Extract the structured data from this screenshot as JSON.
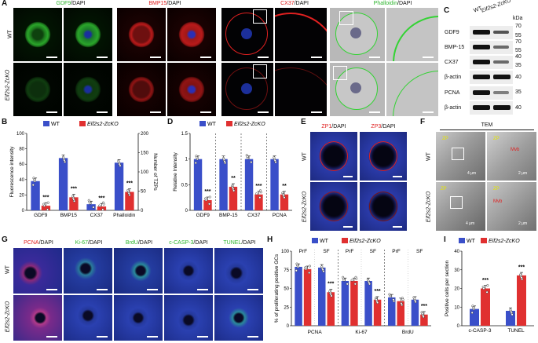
{
  "panel_letters": {
    "a": "A",
    "b": "B",
    "c": "C",
    "d": "D",
    "e": "E",
    "f": "F",
    "g": "G",
    "h": "H",
    "i": "I"
  },
  "genotypes": {
    "wt": "WT",
    "ko": "Eif2s2-ZcKO"
  },
  "panel_a": {
    "titles": {
      "gdf9": "GDF9",
      "bmp15": "BMP15",
      "cx37": "CX37",
      "phalloidin": "Phalloidin",
      "dapi": "/DAPI"
    },
    "colors": {
      "gdf9": "#2db52d",
      "bmp15": "#e02020",
      "cx37": "#e02020",
      "phalloidin": "#33d333"
    }
  },
  "panel_c": {
    "unit": "kDa",
    "lanes": [
      "WT",
      "Eif2s2-ZcKO"
    ],
    "rows": [
      {
        "label": "GDF9",
        "markers": [
          "70",
          "55"
        ]
      },
      {
        "label": "BMP-15",
        "markers": [
          "70",
          "55"
        ]
      },
      {
        "label": "CX37",
        "markers": [
          "40",
          "35"
        ]
      },
      {
        "label": "β-actin",
        "markers": [
          "40"
        ]
      },
      {
        "label": "PCNA",
        "markers": [
          "35"
        ]
      },
      {
        "label": "β-actin",
        "markers": [
          "40"
        ]
      }
    ]
  },
  "panel_e": {
    "zp1": "ZP1",
    "zp3": "ZP3",
    "dapi": "/DAPI"
  },
  "panel_f": {
    "title": "TEM",
    "scale_bars": [
      "4 μm",
      "2 μm",
      "4 μm",
      "2 μm"
    ],
    "labels": [
      "ZP",
      "Mvb",
      "ZP",
      "Mvb"
    ]
  },
  "panel_g": {
    "titles": [
      "PCNA",
      "Ki-67",
      "BrdU",
      "c-CASP-3",
      "TUNEL"
    ],
    "dapi": "/DAPI"
  },
  "chart_data": [
    {
      "type": "bar",
      "title": "B",
      "categories": [
        "GDF9",
        "BMP15",
        "CX37",
        "Phalloidin"
      ],
      "ylabel": "Fluorescence intensity",
      "ylim": [
        0,
        100
      ],
      "y2label": "Number of TZPs",
      "y2lim": [
        0,
        200
      ],
      "series": [
        {
          "name": "WT",
          "color": "#3a4fc9",
          "values": [
            38,
            68,
            8,
            62
          ]
        },
        {
          "name": "Eif2s2-ZcKO",
          "color": "#e03030",
          "values": [
            6,
            17,
            5,
            24
          ]
        }
      ],
      "significance": [
        "***",
        "***",
        "***",
        "***"
      ],
      "legend": "top"
    },
    {
      "type": "bar",
      "title": "D",
      "categories": [
        "GDF9",
        "BMP-15",
        "CX37",
        "PCNA"
      ],
      "ylabel": "Relative Intensity",
      "ylim": [
        0,
        1.5
      ],
      "series": [
        {
          "name": "WT",
          "color": "#3a4fc9",
          "values": [
            1.0,
            1.0,
            1.0,
            1.0
          ]
        },
        {
          "name": "Eif2s2-ZcKO",
          "color": "#e03030",
          "values": [
            0.2,
            0.46,
            0.31,
            0.31
          ]
        }
      ],
      "significance": [
        "***",
        "**",
        "***",
        "**"
      ],
      "legend": "top"
    },
    {
      "type": "bar",
      "title": "H",
      "categories": [
        "PCNA PrF",
        "PCNA SF",
        "Ki-67 PrF",
        "Ki-67 SF",
        "BrdU PrF",
        "BrdU SF"
      ],
      "group_labels": [
        "PCNA",
        "Ki-67",
        "BrdU"
      ],
      "sub_labels": [
        "PrF",
        "SF",
        "PrF",
        "SF",
        "PrF",
        "SF"
      ],
      "ylabel": "% of proliferating positive GCs",
      "ylim": [
        0,
        100
      ],
      "series": [
        {
          "name": "WT",
          "color": "#3a4fc9",
          "values": [
            79,
            78,
            60,
            60,
            38,
            35
          ]
        },
        {
          "name": "Eif2s2-ZcKO",
          "color": "#e03030",
          "values": [
            76,
            45,
            60,
            35,
            33,
            15
          ]
        }
      ],
      "significance": [
        "",
        "***",
        "",
        "***",
        "",
        "***"
      ],
      "legend": "top"
    },
    {
      "type": "bar",
      "title": "I",
      "categories": [
        "c-CASP-3",
        "TUNEL"
      ],
      "ylabel": "Positive cells per section",
      "ylim": [
        0,
        40
      ],
      "series": [
        {
          "name": "WT",
          "color": "#3a4fc9",
          "values": [
            9,
            8
          ]
        },
        {
          "name": "Eif2s2-ZcKO",
          "color": "#e03030",
          "values": [
            20,
            27
          ]
        }
      ],
      "significance": [
        "***",
        "***"
      ],
      "legend": "top"
    }
  ]
}
